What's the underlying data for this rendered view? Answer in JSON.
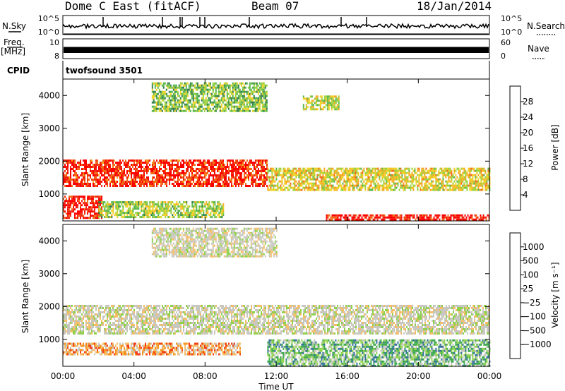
{
  "header": {
    "station": "Dome C East (fitACF)",
    "beam": "Beam 07",
    "date": "18/Jan/2014"
  },
  "side_labels": {
    "nsky": "N.Sky",
    "freq": "Freq.",
    "freq_unit": "[MHz]",
    "cpid": "CPID",
    "nsearch": "N.Search",
    "nave": "Nave"
  },
  "panels": {
    "noise": {
      "left_ticks": [
        "10^5",
        "10^0"
      ],
      "right_ticks": [
        "10^5",
        "10^0"
      ]
    },
    "freq": {
      "left_ticks": [
        "10",
        "8"
      ],
      "right_ticks": [
        "60",
        "0"
      ]
    },
    "cpid_text": "twofsound 3501"
  },
  "colors": {
    "power_scale": [
      "#1a1aff",
      "#2a4fa8",
      "#2e7d46",
      "#55b54a",
      "#9bd13a",
      "#f0d020",
      "#f7a81c",
      "#f36a18",
      "#ee2b14",
      "#ff0000"
    ],
    "velocity_scale": [
      "#ff0000",
      "#f2401a",
      "#f7921c",
      "#f5be6a",
      "#c8c8c0",
      "#c8c8c0",
      "#8fd14a",
      "#3aa84a",
      "#2e6f98",
      "#1a2ed8"
    ]
  },
  "chart_data": [
    {
      "type": "heatmap",
      "name": "power",
      "ylabel": "Slant Range [km]",
      "xlabel": "",
      "xlim": [
        0,
        24
      ],
      "ylim": [
        180,
        4500
      ],
      "xticks": [
        "00:00",
        "04:00",
        "08:00",
        "12:00",
        "16:00",
        "20:00",
        "00:00"
      ],
      "yticks": [
        1000,
        2000,
        3000,
        4000
      ],
      "colorbar": {
        "label": "Power [dB]",
        "ticks": [
          "4",
          "8",
          "12",
          "16",
          "20",
          "24",
          "28"
        ]
      },
      "regions": [
        {
          "t0": 0,
          "t1": 11.5,
          "r0": 1250,
          "r1": 2050,
          "level": 0.86
        },
        {
          "t0": 11.5,
          "t1": 24,
          "r0": 1150,
          "r1": 1800,
          "level": 0.55
        },
        {
          "t0": 0,
          "t1": 2.2,
          "r0": 300,
          "r1": 950,
          "level": 0.9
        },
        {
          "t0": 2,
          "t1": 9,
          "r0": 280,
          "r1": 780,
          "level": 0.45
        },
        {
          "t0": 14.8,
          "t1": 24,
          "r0": 200,
          "r1": 380,
          "level": 0.92
        },
        {
          "t0": 5,
          "t1": 11.5,
          "r0": 3500,
          "r1": 4400,
          "level": 0.4
        },
        {
          "t0": 13.5,
          "t1": 15.5,
          "r0": 3600,
          "r1": 4000,
          "level": 0.5
        }
      ]
    },
    {
      "type": "heatmap",
      "name": "velocity",
      "ylabel": "Slant Range [km]",
      "xlabel": "Time UT",
      "xlim": [
        0,
        24
      ],
      "ylim": [
        180,
        4500
      ],
      "xticks": [
        "00:00",
        "04:00",
        "08:00",
        "12:00",
        "16:00",
        "20:00",
        "00:00"
      ],
      "yticks": [
        1000,
        2000,
        3000,
        4000
      ],
      "colorbar": {
        "label": "Velocity [m s⁻¹]",
        "ticks": [
          "1000",
          "500",
          "100",
          "25",
          "−25",
          "−100",
          "−500",
          "−1000"
        ]
      },
      "regions": [
        {
          "t0": 0,
          "t1": 24,
          "r0": 1150,
          "r1": 2050,
          "level": 0.5
        },
        {
          "t0": 0,
          "t1": 10,
          "r0": 550,
          "r1": 900,
          "level": 0.3
        },
        {
          "t0": 11.5,
          "t1": 24,
          "r0": 200,
          "r1": 1000,
          "level": 0.7
        },
        {
          "t0": 5,
          "t1": 12,
          "r0": 3500,
          "r1": 4400,
          "level": 0.5
        }
      ]
    }
  ]
}
